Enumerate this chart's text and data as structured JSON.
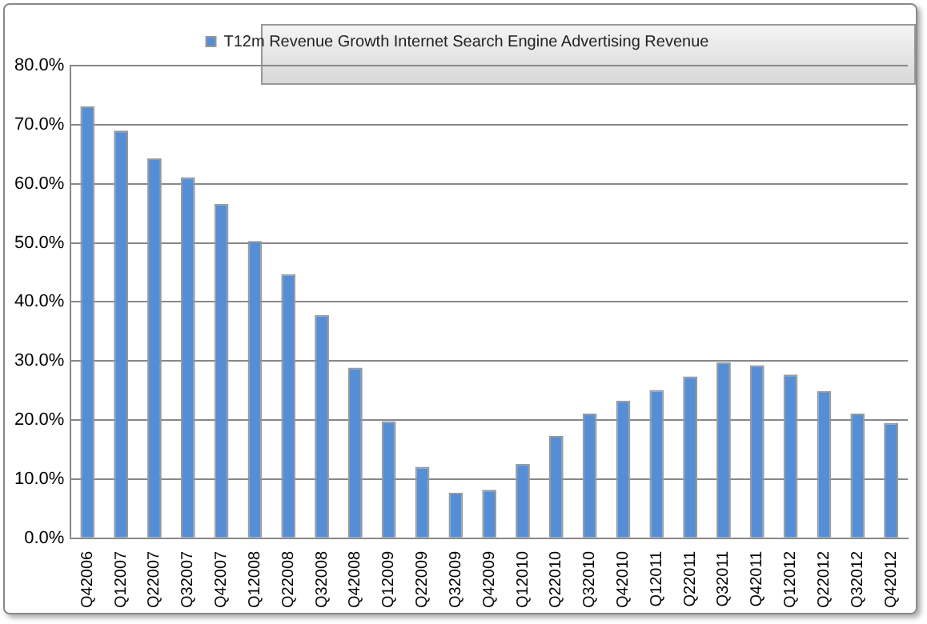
{
  "chart_data": {
    "type": "bar",
    "categories": [
      "Q42006",
      "Q12007",
      "Q22007",
      "Q32007",
      "Q42007",
      "Q12008",
      "Q22008",
      "Q32008",
      "Q42008",
      "Q12009",
      "Q22009",
      "Q32009",
      "Q42009",
      "Q12010",
      "Q22010",
      "Q32010",
      "Q42010",
      "Q12011",
      "Q22011",
      "Q32011",
      "Q42011",
      "Q12012",
      "Q22012",
      "Q32012",
      "Q42012"
    ],
    "series": [
      {
        "name": "T12m Revenue Growth Internet Search Engine Advertising Revenue",
        "color": "#558ed5",
        "values": [
          73.1,
          69.0,
          64.3,
          61.1,
          56.6,
          50.3,
          44.7,
          37.8,
          28.9,
          19.8,
          12.1,
          7.7,
          8.2,
          12.6,
          17.3,
          21.1,
          23.3,
          25.1,
          27.4,
          29.8,
          29.3,
          27.7,
          24.9,
          21.1,
          19.5
        ]
      }
    ],
    "ylim": [
      0,
      80
    ],
    "yticks": [
      {
        "value": 0,
        "label": "0.0%"
      },
      {
        "value": 10,
        "label": "10.0%"
      },
      {
        "value": 20,
        "label": "20.0%"
      },
      {
        "value": 30,
        "label": "30.0%"
      },
      {
        "value": 40,
        "label": "40.0%"
      },
      {
        "value": 50,
        "label": "50.0%"
      },
      {
        "value": 60,
        "label": "60.0%"
      },
      {
        "value": 70,
        "label": "70.0%"
      },
      {
        "value": 80,
        "label": "80.0%"
      }
    ],
    "grid": "y",
    "legend": "top"
  }
}
